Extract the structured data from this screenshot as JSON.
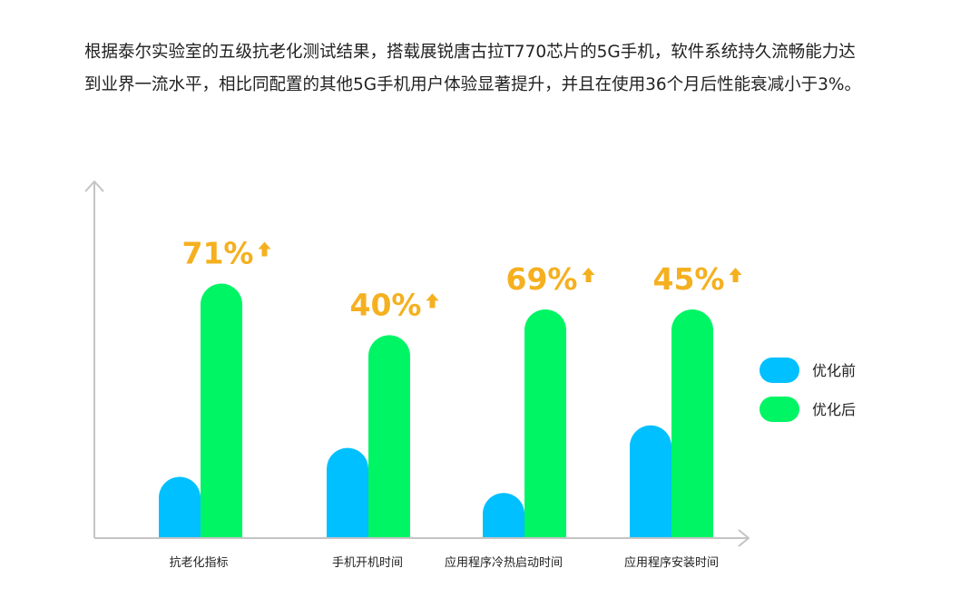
{
  "intro_text": "根据泰尔实验室的五级抗老化测试结果，搭载展锐唐古拉T770芯片的5G手机，软件系统持久流畅能力达到业界一流水平，相比同配置的其他5G手机用户体验显著提升，并且在使用36个月后性能衰减小于3%。",
  "colors": {
    "before": "#00c0ff",
    "after": "#00f565",
    "accent": "#f5b020",
    "axis": "#c4c4c4"
  },
  "chart_data": {
    "type": "bar",
    "title": "",
    "xlabel": "",
    "ylabel": "",
    "grid": false,
    "legend_position": "right",
    "categories": [
      "抗老化指标",
      "手机开机时间",
      "应用程序冷热启动时间",
      "应用程序安装时间"
    ],
    "series": [
      {
        "name": "优化前",
        "values": [
          19,
          28,
          14,
          35
        ]
      },
      {
        "name": "优化后",
        "values": [
          79,
          63,
          71,
          71
        ]
      }
    ],
    "annotations": [
      "71%",
      "40%",
      "69%",
      "45%"
    ],
    "annotation_arrow": "up",
    "ylim": [
      0,
      100
    ]
  }
}
